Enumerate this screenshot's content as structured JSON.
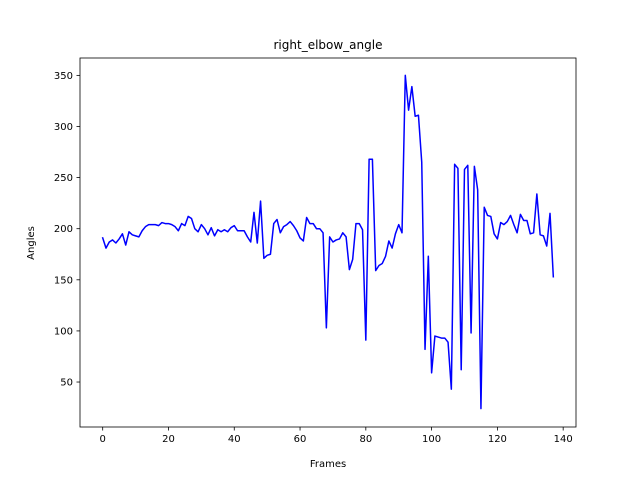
{
  "chart_data": {
    "type": "line",
    "title": "right_elbow_angle",
    "xlabel": "Frames",
    "ylabel": "Angles",
    "xlim": [
      -6.9,
      143.9
    ],
    "ylim": [
      6,
      367
    ],
    "xticks": [
      0,
      20,
      40,
      60,
      80,
      100,
      120,
      140
    ],
    "yticks": [
      50,
      100,
      150,
      200,
      250,
      300,
      350
    ],
    "grid": false,
    "legend": "none",
    "line_color": "#0000ff",
    "series": [
      {
        "values": [
          191,
          181,
          187,
          189,
          186,
          190,
          195,
          184,
          197,
          194,
          193,
          192,
          198,
          202,
          204,
          204,
          204,
          203,
          206,
          205,
          205,
          204,
          202,
          198,
          205,
          203,
          212,
          210,
          200,
          197,
          204,
          200,
          194,
          201,
          193,
          199,
          197,
          199,
          197,
          201,
          203,
          198,
          198,
          198,
          192,
          187,
          216,
          186,
          227,
          171,
          174,
          175,
          205,
          209,
          196,
          202,
          204,
          207,
          203,
          198,
          191,
          188,
          211,
          205,
          205,
          200,
          200,
          196,
          103,
          192,
          187,
          189,
          190,
          196,
          192,
          160,
          170,
          205,
          205,
          199,
          91,
          268,
          268,
          159,
          164,
          166,
          173,
          188,
          181,
          195,
          204,
          196,
          350,
          316,
          339,
          310,
          311,
          265,
          82,
          173,
          59,
          95,
          94,
          93,
          93,
          89,
          43,
          263,
          259,
          62,
          258,
          262,
          98,
          261,
          238,
          24,
          221,
          213,
          212,
          195,
          190,
          206,
          204,
          207,
          213,
          204,
          196,
          214,
          208,
          208,
          195,
          196,
          234,
          194,
          193,
          183,
          215,
          153
        ]
      }
    ]
  }
}
